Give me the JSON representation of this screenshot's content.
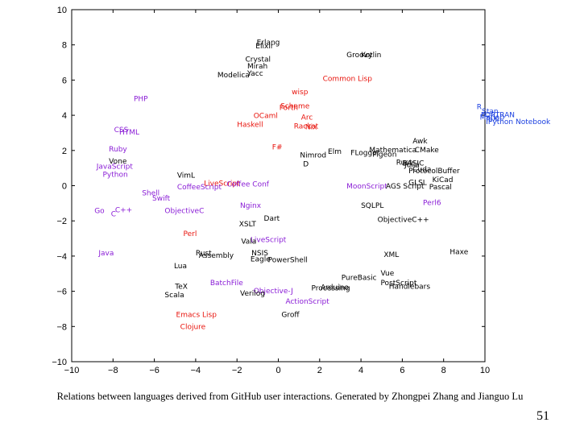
{
  "chart_data": {
    "type": "scatter",
    "title": "",
    "xlabel": "",
    "ylabel": "",
    "xlim": [
      -10,
      10
    ],
    "ylim": [
      -10,
      10
    ],
    "grid": false,
    "xticks": [
      -10,
      -8,
      -6,
      -4,
      -2,
      0,
      2,
      4,
      6,
      8,
      10
    ],
    "yticks": [
      -10,
      -8,
      -6,
      -4,
      -2,
      0,
      2,
      4,
      6,
      8,
      10
    ],
    "xtick_labels": [
      "−10",
      "−8",
      "−6",
      "−4",
      "−2",
      "0",
      "2",
      "4",
      "6",
      "8",
      "10"
    ],
    "ytick_labels": [
      "−10",
      "−8",
      "−6",
      "−4",
      "−2",
      "0",
      "2",
      "4",
      "6",
      "8",
      "10"
    ],
    "colors": {
      "black": "#000000",
      "red": "#e8150e",
      "purple": "#8a1dd6",
      "blue": "#1a3fe0",
      "magenta": "#c21fa8"
    },
    "points": [
      {
        "label": "Erlang",
        "x": -1.05,
        "y": 8.0,
        "color": "black"
      },
      {
        "label": "Elixir",
        "x": -1.1,
        "y": 7.8,
        "color": "black"
      },
      {
        "label": "Groovy",
        "x": 3.3,
        "y": 7.3,
        "color": "black"
      },
      {
        "label": "Kotlin",
        "x": 4.0,
        "y": 7.3,
        "color": "black"
      },
      {
        "label": "Crystal",
        "x": -1.6,
        "y": 7.05,
        "color": "black"
      },
      {
        "label": "Mirah",
        "x": -1.5,
        "y": 6.65,
        "color": "black"
      },
      {
        "label": "Yacc",
        "x": -1.5,
        "y": 6.25,
        "color": "black"
      },
      {
        "label": "Modelica",
        "x": -2.95,
        "y": 6.15,
        "color": "black"
      },
      {
        "label": "Common Lisp",
        "x": 2.15,
        "y": 5.95,
        "color": "red"
      },
      {
        "label": "wisp",
        "x": 0.65,
        "y": 5.2,
        "color": "red"
      },
      {
        "label": "PHP",
        "x": -7.0,
        "y": 4.8,
        "color": "purple"
      },
      {
        "label": "Scheme",
        "x": 0.1,
        "y": 4.4,
        "color": "red"
      },
      {
        "label": "Forth",
        "x": 0.05,
        "y": 4.3,
        "color": "red"
      },
      {
        "label": "OCaml",
        "x": -1.2,
        "y": 3.85,
        "color": "red"
      },
      {
        "label": "Arc",
        "x": 1.1,
        "y": 3.75,
        "color": "red"
      },
      {
        "label": "Haskell",
        "x": -2.0,
        "y": 3.35,
        "color": "red"
      },
      {
        "label": "Racket",
        "x": 0.75,
        "y": 3.25,
        "color": "red"
      },
      {
        "label": "Nix",
        "x": 1.3,
        "y": 3.2,
        "color": "red"
      },
      {
        "label": "R",
        "x": 9.6,
        "y": 4.35,
        "color": "blue"
      },
      {
        "label": "Stan",
        "x": 9.85,
        "y": 4.1,
        "color": "blue"
      },
      {
        "label": "FORTRAN",
        "x": 9.8,
        "y": 3.9,
        "color": "blue"
      },
      {
        "label": "Matlab",
        "x": 9.75,
        "y": 3.75,
        "color": "blue"
      },
      {
        "label": "TeX",
        "x": 10.0,
        "y": 3.65,
        "color": "blue"
      },
      {
        "label": "IPython Notebook",
        "x": 10.05,
        "y": 3.5,
        "color": "blue"
      },
      {
        "label": "CSS",
        "x": -7.95,
        "y": 3.05,
        "color": "purple"
      },
      {
        "label": "HTML",
        "x": -7.7,
        "y": 2.9,
        "color": "purple"
      },
      {
        "label": "Awk",
        "x": 6.5,
        "y": 2.4,
        "color": "black"
      },
      {
        "label": "Mathematica",
        "x": 4.4,
        "y": 1.9,
        "color": "black"
      },
      {
        "label": "CMake",
        "x": 6.6,
        "y": 1.9,
        "color": "black"
      },
      {
        "label": "Ruby",
        "x": -8.2,
        "y": 1.95,
        "color": "purple"
      },
      {
        "label": "F#",
        "x": -0.3,
        "y": 2.05,
        "color": "red"
      },
      {
        "label": "Elm",
        "x": 2.4,
        "y": 1.8,
        "color": "black"
      },
      {
        "label": "FLogger",
        "x": 3.5,
        "y": 1.75,
        "color": "black"
      },
      {
        "label": "Pigeon",
        "x": 4.55,
        "y": 1.65,
        "color": "black"
      },
      {
        "label": "Nimrod",
        "x": 1.05,
        "y": 1.6,
        "color": "black"
      },
      {
        "label": "Rust",
        "x": 5.7,
        "y": 1.2,
        "color": "black"
      },
      {
        "label": "BASIC",
        "x": 6.0,
        "y": 1.15,
        "color": "black"
      },
      {
        "label": "Julia",
        "x": 6.1,
        "y": 1.05,
        "color": "black"
      },
      {
        "label": "Vone",
        "x": -8.2,
        "y": 1.25,
        "color": "black"
      },
      {
        "label": "JavaScript",
        "x": -8.8,
        "y": 0.95,
        "color": "purple"
      },
      {
        "label": "D",
        "x": 1.2,
        "y": 1.1,
        "color": "black"
      },
      {
        "label": "Cuda",
        "x": 6.5,
        "y": 0.8,
        "color": "black"
      },
      {
        "label": "ProtocolBuffer",
        "x": 6.3,
        "y": 0.7,
        "color": "black"
      },
      {
        "label": "Python",
        "x": -8.5,
        "y": 0.5,
        "color": "purple"
      },
      {
        "label": "VimL",
        "x": -4.9,
        "y": 0.45,
        "color": "black"
      },
      {
        "label": "KiCad",
        "x": 7.45,
        "y": 0.2,
        "color": "black"
      },
      {
        "label": "GLSL",
        "x": 6.3,
        "y": 0.05,
        "color": "black"
      },
      {
        "label": "LiveScript",
        "x": -3.6,
        "y": 0.0,
        "color": "red"
      },
      {
        "label": "CoffeeScript",
        "x": -4.9,
        "y": -0.2,
        "color": "purple"
      },
      {
        "label": "Coffee Conf",
        "x": -2.5,
        "y": -0.05,
        "color": "purple"
      },
      {
        "label": "MoonScript",
        "x": 3.3,
        "y": -0.15,
        "color": "purple"
      },
      {
        "label": "AGS Script",
        "x": 5.2,
        "y": -0.15,
        "color": "black"
      },
      {
        "label": "Pascal",
        "x": 7.3,
        "y": -0.2,
        "color": "black"
      },
      {
        "label": "Shell",
        "x": -6.6,
        "y": -0.55,
        "color": "purple"
      },
      {
        "label": "Swift",
        "x": -6.1,
        "y": -0.85,
        "color": "purple"
      },
      {
        "label": "SQLPL",
        "x": 4.0,
        "y": -1.25,
        "color": "black"
      },
      {
        "label": "Perl6",
        "x": 7.0,
        "y": -1.1,
        "color": "purple"
      },
      {
        "label": "Nginx",
        "x": -1.85,
        "y": -1.25,
        "color": "purple"
      },
      {
        "label": "Go",
        "x": -8.9,
        "y": -1.55,
        "color": "purple"
      },
      {
        "label": "C++",
        "x": -7.9,
        "y": -1.5,
        "color": "purple"
      },
      {
        "label": "C",
        "x": -8.1,
        "y": -1.75,
        "color": "purple"
      },
      {
        "label": "ObjectiveC",
        "x": -5.5,
        "y": -1.55,
        "color": "purple"
      },
      {
        "label": "Dart",
        "x": -0.7,
        "y": -2.0,
        "color": "black"
      },
      {
        "label": "ObjectiveC++",
        "x": 4.8,
        "y": -2.05,
        "color": "black"
      },
      {
        "label": "XSLT",
        "x": -1.9,
        "y": -2.3,
        "color": "black"
      },
      {
        "label": "Perl",
        "x": -4.6,
        "y": -2.85,
        "color": "red"
      },
      {
        "label": "LiveScript",
        "x": -1.35,
        "y": -3.2,
        "color": "purple"
      },
      {
        "label": "Vala",
        "x": -1.8,
        "y": -3.3,
        "color": "black"
      },
      {
        "label": "Haxe",
        "x": 8.3,
        "y": -3.9,
        "color": "black"
      },
      {
        "label": "Java",
        "x": -8.7,
        "y": -3.95,
        "color": "purple"
      },
      {
        "label": "Rust",
        "x": -4.0,
        "y": -3.95,
        "color": "black"
      },
      {
        "label": "NSIS",
        "x": -1.3,
        "y": -3.95,
        "color": "black"
      },
      {
        "label": "Assembly",
        "x": -3.85,
        "y": -4.1,
        "color": "black"
      },
      {
        "label": "XML",
        "x": 5.1,
        "y": -4.05,
        "color": "black"
      },
      {
        "label": "Eagle",
        "x": -1.35,
        "y": -4.3,
        "color": "black"
      },
      {
        "label": "PowerShell",
        "x": -0.5,
        "y": -4.35,
        "color": "black"
      },
      {
        "label": "Lua",
        "x": -5.05,
        "y": -4.7,
        "color": "black"
      },
      {
        "label": "Vue",
        "x": 4.95,
        "y": -5.1,
        "color": "black"
      },
      {
        "label": "PureBasic",
        "x": 3.05,
        "y": -5.35,
        "color": "black"
      },
      {
        "label": "BatchFile",
        "x": -3.3,
        "y": -5.65,
        "color": "purple"
      },
      {
        "label": "PostScript",
        "x": 4.95,
        "y": -5.65,
        "color": "black"
      },
      {
        "label": "Handlebars",
        "x": 5.35,
        "y": -5.85,
        "color": "black"
      },
      {
        "label": "Arduino",
        "x": 2.05,
        "y": -5.9,
        "color": "black"
      },
      {
        "label": "TeX",
        "x": -5.0,
        "y": -5.85,
        "color": "black"
      },
      {
        "label": "Processing",
        "x": 1.6,
        "y": -5.95,
        "color": "black"
      },
      {
        "label": "Objective-J",
        "x": -1.2,
        "y": -6.1,
        "color": "purple"
      },
      {
        "label": "Verilog",
        "x": -1.85,
        "y": -6.25,
        "color": "black"
      },
      {
        "label": "Scala",
        "x": -5.5,
        "y": -6.35,
        "color": "black"
      },
      {
        "label": "ActionScript",
        "x": 0.35,
        "y": -6.7,
        "color": "purple"
      },
      {
        "label": "Emacs Lisp",
        "x": -4.95,
        "y": -7.45,
        "color": "red"
      },
      {
        "label": "Groff",
        "x": 0.15,
        "y": -7.45,
        "color": "black"
      },
      {
        "label": "Clojure",
        "x": -4.75,
        "y": -8.15,
        "color": "red"
      }
    ]
  },
  "caption": "Relations between languages derived from GitHub user interactions. Generated by Zhongpei Zhang and Jianguo Lu",
  "page_number": "51"
}
